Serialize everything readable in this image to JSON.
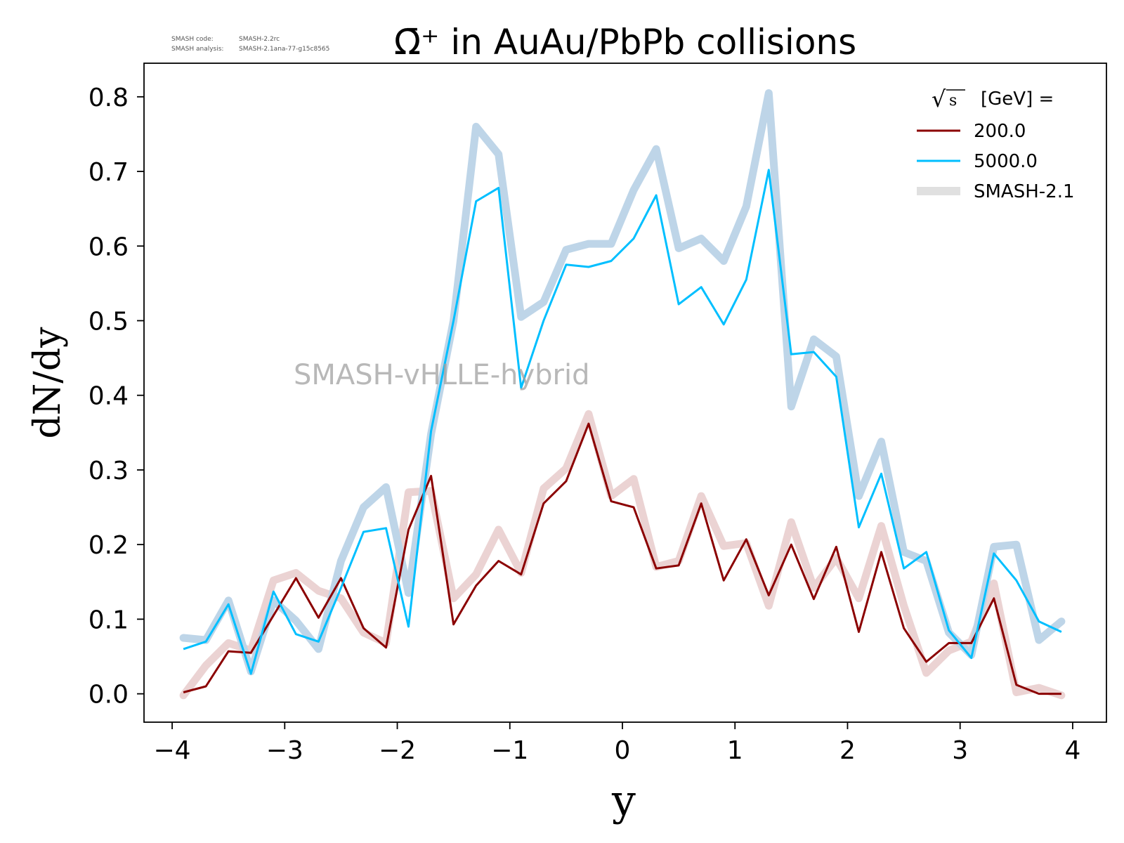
{
  "meta": {
    "code_label": "SMASH code:",
    "code_value": "SMASH-2.2rc",
    "analysis_label": "SMASH analysis:",
    "analysis_value": "SMASH-2.1ana-77-g15c8565"
  },
  "watermark": "SMASH-vHLLE-hybrid",
  "chart_data": {
    "type": "line",
    "title": "Ω̄⁺ in AuAu/PbPb collisions",
    "xlabel": "y",
    "ylabel": "dN/dy",
    "xlim": [
      -4.25,
      4.3
    ],
    "ylim": [
      -0.038,
      0.845
    ],
    "xticks": [
      -4,
      -3,
      -2,
      -1,
      0,
      1,
      2,
      3,
      4
    ],
    "xtick_labels": [
      "−4",
      "−3",
      "−2",
      "−1",
      "0",
      "1",
      "2",
      "3",
      "4"
    ],
    "yticks": [
      0.0,
      0.1,
      0.2,
      0.3,
      0.4,
      0.5,
      0.6,
      0.7,
      0.8
    ],
    "ytick_labels": [
      "0.0",
      "0.1",
      "0.2",
      "0.3",
      "0.4",
      "0.5",
      "0.6",
      "0.7",
      "0.8"
    ],
    "grid": false,
    "legend": {
      "title": "√s  [GeV] =",
      "title_sqrt": "√",
      "title_s": "s",
      "title_rest": "[GeV] =",
      "placement": "top-right"
    },
    "x": [
      -3.9,
      -3.7,
      -3.5,
      -3.3,
      -3.1,
      -2.9,
      -2.7,
      -2.5,
      -2.3,
      -2.1,
      -1.9,
      -1.7,
      -1.5,
      -1.3,
      -1.1,
      -0.9,
      -0.7,
      -0.5,
      -0.3,
      -0.1,
      0.1,
      0.3,
      0.5,
      0.7,
      0.9,
      1.1,
      1.3,
      1.5,
      1.7,
      1.9,
      2.1,
      2.3,
      2.5,
      2.7,
      2.9,
      3.1,
      3.3,
      3.5,
      3.7,
      3.9
    ],
    "series": [
      {
        "name": "200.0",
        "color": "#8b0000",
        "style": "current",
        "values": [
          0.002,
          0.01,
          0.057,
          0.055,
          0.105,
          0.155,
          0.102,
          0.155,
          0.088,
          0.062,
          0.22,
          0.292,
          0.093,
          0.145,
          0.178,
          0.16,
          0.255,
          0.285,
          0.362,
          0.258,
          0.25,
          0.168,
          0.172,
          0.255,
          0.152,
          0.207,
          0.132,
          0.2,
          0.127,
          0.197,
          0.083,
          0.19,
          0.088,
          0.043,
          0.068,
          0.068,
          0.128,
          0.012,
          0.0,
          0.0
        ]
      },
      {
        "name": "5000.0",
        "color": "#00bfff",
        "style": "current",
        "values": [
          0.06,
          0.07,
          0.12,
          0.027,
          0.137,
          0.08,
          0.07,
          0.142,
          0.217,
          0.222,
          0.09,
          0.352,
          0.5,
          0.66,
          0.678,
          0.41,
          0.5,
          0.575,
          0.572,
          0.58,
          0.61,
          0.668,
          0.522,
          0.545,
          0.495,
          0.555,
          0.702,
          0.455,
          0.458,
          0.425,
          0.223,
          0.295,
          0.168,
          0.19,
          0.085,
          0.048,
          0.188,
          0.152,
          0.097,
          0.083
        ]
      },
      {
        "name": "SMASH-2.1",
        "color": "#e6e6e6",
        "style": "reference",
        "ref_for": "200.0",
        "color_on_chart": "#ebd3d3",
        "values": [
          -0.002,
          0.038,
          0.068,
          0.058,
          0.152,
          0.162,
          0.138,
          0.128,
          0.082,
          0.068,
          0.27,
          0.272,
          0.128,
          0.16,
          0.22,
          0.162,
          0.275,
          0.302,
          0.375,
          0.265,
          0.288,
          0.17,
          0.178,
          0.265,
          0.198,
          0.202,
          0.118,
          0.23,
          0.142,
          0.182,
          0.128,
          0.225,
          0.118,
          0.028,
          0.058,
          0.07,
          0.148,
          0.002,
          0.008,
          -0.002
        ]
      },
      {
        "name": "SMASH-2.1",
        "color": "#e6e6e6",
        "style": "reference",
        "ref_for": "5000.0",
        "color_on_chart": "#bed5e8",
        "values": [
          0.075,
          0.072,
          0.125,
          0.03,
          0.125,
          0.098,
          0.06,
          0.178,
          0.25,
          0.277,
          0.135,
          0.348,
          0.5,
          0.76,
          0.723,
          0.505,
          0.525,
          0.595,
          0.603,
          0.603,
          0.675,
          0.73,
          0.597,
          0.61,
          0.58,
          0.653,
          0.805,
          0.385,
          0.475,
          0.452,
          0.265,
          0.338,
          0.19,
          0.178,
          0.082,
          0.052,
          0.197,
          0.2,
          0.072,
          0.097
        ]
      }
    ]
  }
}
